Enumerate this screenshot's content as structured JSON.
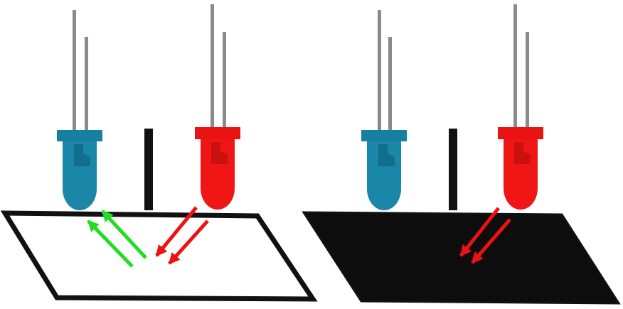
{
  "colors": {
    "background": "#ffffff",
    "lead": "#8a8a8a",
    "receiver_led_body": "#1a86a8",
    "receiver_led_rim": "#177fa0",
    "receiver_led_shade": "#126b87",
    "emitter_led_body": "#f01616",
    "emitter_led_rim": "#e81414",
    "emitter_led_shade": "#c40f0f",
    "barrier": "#111111",
    "surface_outline": "#111111",
    "light_surface_fill": "#ffffff",
    "dark_surface_fill": "#0d0d0d",
    "emitted_light": "#ee1111",
    "reflected_light": "#22dd22"
  },
  "panels": [
    {
      "name": "white-surface-panel",
      "surface": "white",
      "reflection_visible": true
    },
    {
      "name": "black-surface-panel",
      "surface": "black",
      "reflection_visible": false
    }
  ]
}
